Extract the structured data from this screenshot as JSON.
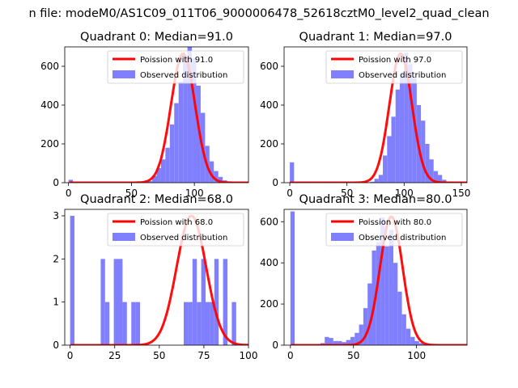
{
  "suptitle": "n file: modeM0/AS1C09_011T06_9000006478_52618cztM0_level2_quad_clean",
  "colors": {
    "hist": "#8080ff",
    "curve": "#ff0000",
    "axis": "#000000"
  },
  "chart_data": [
    {
      "type": "bar+line",
      "title": "Quadrant 0: Median=91.0",
      "legend": {
        "loc": "top-right",
        "entries": [
          "Poission with 91.0",
          "Observed distribution"
        ]
      },
      "xlim": [
        -3,
        143
      ],
      "ylim": [
        0,
        700
      ],
      "xticks": [
        0,
        50,
        100
      ],
      "yticks": [
        0,
        200,
        400,
        600
      ],
      "median": 91.0,
      "poisson_peak": 665,
      "bins_start": 0,
      "bin_width": 3.5,
      "counts": [
        15,
        0,
        0,
        0,
        0,
        0,
        0,
        0,
        0,
        0,
        0,
        0,
        0,
        0,
        0,
        0,
        0,
        3,
        8,
        35,
        75,
        120,
        180,
        300,
        410,
        520,
        650,
        700,
        640,
        500,
        360,
        190,
        110,
        60,
        30,
        12,
        5
      ]
    },
    {
      "type": "bar+line",
      "title": "Quadrant 1: Median=97.0",
      "legend": {
        "loc": "top-right",
        "entries": [
          "Poission with 97.0",
          "Observed distribution"
        ]
      },
      "xlim": [
        -5,
        155
      ],
      "ylim": [
        0,
        700
      ],
      "xticks": [
        0,
        50,
        100,
        150
      ],
      "yticks": [
        0,
        200,
        400,
        600
      ],
      "median": 97.0,
      "poisson_peak": 665,
      "bins_start": 0,
      "bin_width": 3.7,
      "counts": [
        105,
        0,
        0,
        5,
        0,
        0,
        0,
        0,
        0,
        3,
        0,
        0,
        0,
        0,
        0,
        0,
        0,
        0,
        0,
        5,
        20,
        40,
        140,
        240,
        340,
        480,
        560,
        670,
        610,
        540,
        400,
        320,
        200,
        120,
        60,
        40,
        15,
        5,
        2
      ]
    },
    {
      "type": "bar+line",
      "title": "Quadrant 2: Median=68.0",
      "legend": {
        "loc": "top-right",
        "entries": [
          "Poission with 68.0",
          "Observed distribution"
        ]
      },
      "xlim": [
        -3,
        100
      ],
      "ylim": [
        0,
        3.15
      ],
      "xticks": [
        0,
        25,
        50,
        75,
        100
      ],
      "yticks": [
        0,
        1,
        2,
        3
      ],
      "median": 68.0,
      "poisson_peak": 3.0,
      "bins_start": 0,
      "bin_width": 2.45,
      "counts": [
        3,
        0,
        0,
        0,
        0,
        0,
        0,
        2,
        1,
        0,
        2,
        2,
        1,
        0,
        1,
        1,
        0,
        0,
        0,
        0,
        0,
        0,
        0,
        0,
        0,
        0,
        1,
        1,
        2,
        1,
        2,
        1,
        1,
        2,
        0,
        2,
        0,
        1,
        0
      ]
    },
    {
      "type": "bar+line",
      "title": "Quadrant 3: Median=80.0",
      "legend": {
        "loc": "top-right",
        "entries": [
          "Poission with 80.0",
          "Observed distribution"
        ]
      },
      "xlim": [
        -5,
        140
      ],
      "ylim": [
        0,
        660
      ],
      "xticks": [
        0,
        50,
        100
      ],
      "yticks": [
        0,
        200,
        400,
        600
      ],
      "median": 80.0,
      "poisson_peak": 625,
      "bins_start": 0,
      "bin_width": 3.4,
      "counts": [
        650,
        0,
        0,
        0,
        0,
        0,
        0,
        10,
        40,
        35,
        20,
        20,
        15,
        25,
        40,
        60,
        100,
        180,
        300,
        460,
        500,
        620,
        480,
        560,
        400,
        260,
        150,
        80,
        40,
        20,
        10,
        5,
        2
      ]
    }
  ]
}
